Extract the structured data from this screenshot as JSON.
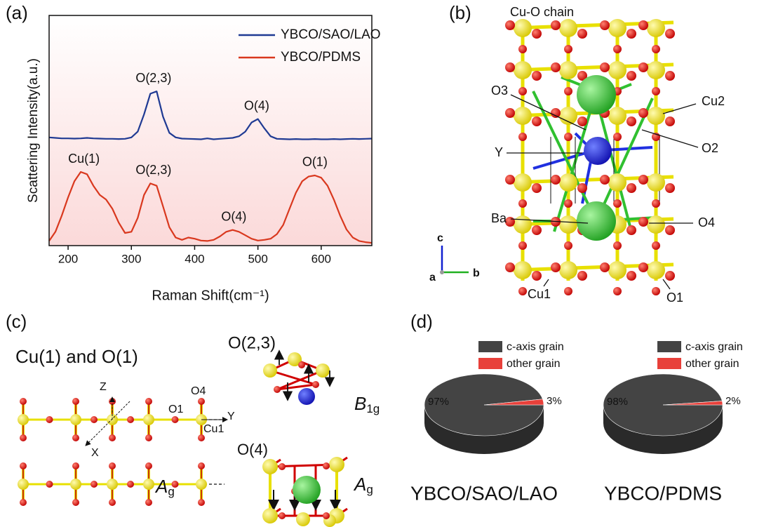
{
  "panel_labels": [
    "(a)",
    "(b)",
    "(c)",
    "(d)"
  ],
  "chart_data": [
    {
      "type": "line",
      "xlabel": "Raman Shift(cm⁻¹)",
      "ylabel": "Scattering Intensity(a.u.)",
      "xlim": [
        170,
        680
      ],
      "ylim": [
        0,
        10
      ],
      "xticks": [
        200,
        300,
        400,
        500,
        600
      ],
      "x": [
        170,
        180,
        190,
        200,
        210,
        220,
        230,
        240,
        250,
        260,
        270,
        280,
        290,
        300,
        310,
        320,
        330,
        340,
        350,
        360,
        370,
        380,
        390,
        400,
        410,
        420,
        430,
        440,
        450,
        460,
        470,
        480,
        490,
        500,
        510,
        520,
        530,
        540,
        550,
        560,
        570,
        580,
        590,
        600,
        610,
        620,
        630,
        640,
        650,
        660,
        670,
        680
      ],
      "series": [
        {
          "name": "YBCO/SAO/LAO",
          "color": "#1f3a93",
          "values": [
            4.7,
            4.68,
            4.66,
            4.66,
            4.65,
            4.66,
            4.68,
            4.66,
            4.65,
            4.64,
            4.64,
            4.63,
            4.64,
            4.7,
            4.95,
            5.7,
            6.6,
            6.7,
            5.6,
            4.9,
            4.7,
            4.65,
            4.64,
            4.63,
            4.62,
            4.66,
            4.62,
            4.64,
            4.66,
            4.68,
            4.75,
            4.95,
            5.35,
            5.5,
            5.1,
            4.75,
            4.64,
            4.63,
            4.62,
            4.63,
            4.62,
            4.62,
            4.63,
            4.62,
            4.62,
            4.63,
            4.62,
            4.63,
            4.64,
            4.63,
            4.64,
            4.65
          ]
        },
        {
          "name": "YBCO/PDMS",
          "color": "#d9381e",
          "values": [
            0.2,
            0.6,
            1.3,
            2.1,
            2.8,
            3.2,
            3.1,
            2.6,
            2.2,
            2.0,
            1.6,
            1.0,
            0.55,
            0.6,
            1.2,
            2.2,
            2.7,
            2.6,
            1.7,
            0.8,
            0.35,
            0.25,
            0.35,
            0.3,
            0.22,
            0.2,
            0.25,
            0.4,
            0.6,
            0.68,
            0.6,
            0.45,
            0.3,
            0.22,
            0.25,
            0.3,
            0.5,
            0.9,
            1.6,
            2.3,
            2.8,
            3.0,
            3.05,
            2.95,
            2.6,
            2.0,
            1.3,
            0.7,
            0.35,
            0.2,
            0.15,
            0.12
          ]
        }
      ],
      "annotations": [
        {
          "text": "O(2,3)",
          "x": 335,
          "series": 0
        },
        {
          "text": "O(4)",
          "x": 498,
          "series": 0
        },
        {
          "text": "Cu(1)",
          "x": 225,
          "series": 1
        },
        {
          "text": "O(2,3)",
          "x": 335,
          "series": 1
        },
        {
          "text": "O(4)",
          "x": 462,
          "series": 1
        },
        {
          "text": "O(1)",
          "x": 590,
          "series": 1
        }
      ]
    },
    {
      "type": "pie",
      "title": "YBCO/SAO/LAO",
      "categories": [
        "c-axis grain",
        "other grain"
      ],
      "values": [
        97,
        3
      ],
      "value_labels": [
        "97%",
        "3%"
      ],
      "colors": [
        "#444444",
        "#e8403a"
      ]
    },
    {
      "type": "pie",
      "title": "YBCO/PDMS",
      "categories": [
        "c-axis grain",
        "other grain"
      ],
      "values": [
        98,
        2
      ],
      "value_labels": [
        "98%",
        "2%"
      ],
      "colors": [
        "#444444",
        "#e8403a"
      ]
    }
  ],
  "structure_b": {
    "labels": [
      "Cu-O chain",
      "O3",
      "Cu2",
      "Y",
      "O2",
      "Ba",
      "O4",
      "Cu1",
      "O1"
    ],
    "axes": [
      "c",
      "a",
      "b"
    ]
  },
  "modes_c": {
    "title": "Cu(1) and O(1)",
    "coords": [
      "Z",
      "X",
      "Y"
    ],
    "atoms": [
      "O1",
      "O4",
      "Cu1"
    ],
    "groups": [
      "O(2,3)",
      "O(4)"
    ],
    "modes": [
      {
        "symbol": "A",
        "sub": "g"
      },
      {
        "symbol": "B",
        "sub": "1g"
      },
      {
        "symbol": "A",
        "sub": "g"
      }
    ]
  }
}
